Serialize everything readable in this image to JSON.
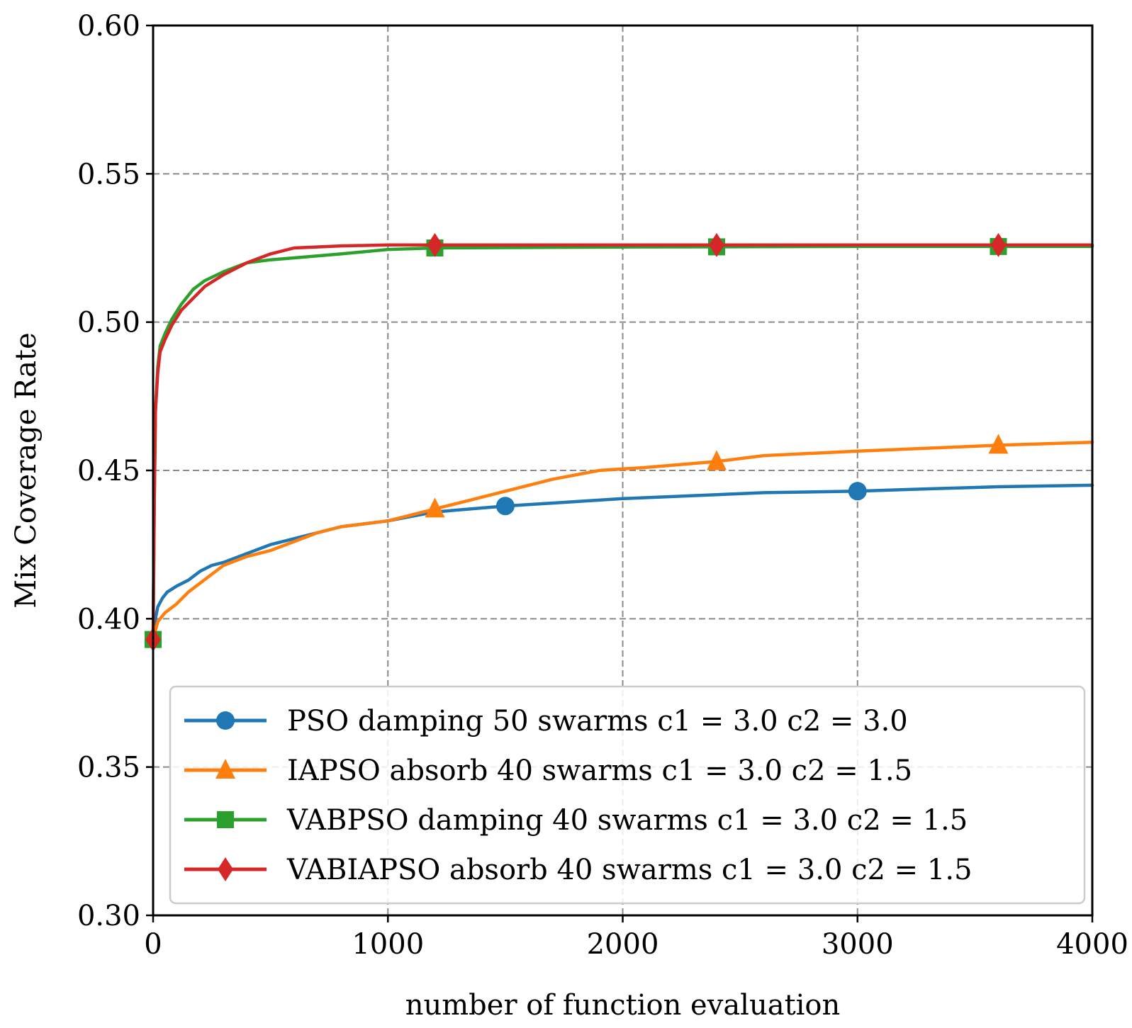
{
  "chart_data": {
    "type": "line",
    "title": "",
    "xlabel": "number of function evaluation",
    "ylabel": "Mix Coverage Rate",
    "xlim": [
      0,
      4000
    ],
    "ylim": [
      0.3,
      0.6
    ],
    "grid": true,
    "legend_position": "lower-right",
    "x_ticks": [
      0,
      1000,
      2000,
      3000,
      4000
    ],
    "x_tick_labels": [
      "0",
      "1000",
      "2000",
      "3000",
      "4000"
    ],
    "y_ticks": [
      0.3,
      0.35,
      0.4,
      0.45,
      0.5,
      0.55,
      0.6
    ],
    "y_tick_labels": [
      "0.30",
      "0.35",
      "0.40",
      "0.45",
      "0.50",
      "0.55",
      "0.60"
    ],
    "series": [
      {
        "name": "PSO damping 50 swarms c1 = 3.0 c2 = 3.0",
        "color": "#1f77b4",
        "marker": "circle",
        "marker_x": [
          1500,
          3000
        ],
        "x": [
          0,
          10,
          20,
          40,
          60,
          100,
          150,
          200,
          250,
          300,
          400,
          500,
          600,
          700,
          800,
          900,
          1000,
          1200,
          1500,
          1700,
          2000,
          2300,
          2600,
          3000,
          3300,
          3600,
          4000
        ],
        "values": [
          0.393,
          0.4,
          0.404,
          0.407,
          0.409,
          0.411,
          0.413,
          0.416,
          0.418,
          0.419,
          0.422,
          0.425,
          0.427,
          0.429,
          0.431,
          0.432,
          0.433,
          0.436,
          0.438,
          0.439,
          0.4405,
          0.4415,
          0.4425,
          0.443,
          0.4438,
          0.4445,
          0.445
        ]
      },
      {
        "name": "IAPSO absorb 40 swarms c1 = 3.0 c2 = 1.5",
        "color": "#ff7f0e",
        "marker": "triangle",
        "marker_x": [
          1200,
          2400,
          3600
        ],
        "x": [
          0,
          20,
          50,
          100,
          150,
          200,
          250,
          300,
          400,
          500,
          600,
          700,
          800,
          900,
          1000,
          1100,
          1200,
          1350,
          1500,
          1700,
          1900,
          2100,
          2400,
          2600,
          3000,
          3300,
          3600,
          4000
        ],
        "values": [
          0.393,
          0.399,
          0.402,
          0.405,
          0.409,
          0.412,
          0.415,
          0.418,
          0.421,
          0.423,
          0.426,
          0.429,
          0.431,
          0.432,
          0.433,
          0.435,
          0.437,
          0.44,
          0.443,
          0.447,
          0.45,
          0.451,
          0.453,
          0.455,
          0.4565,
          0.4575,
          0.4585,
          0.4595
        ]
      },
      {
        "name": "VABPSO damping 40 swarms c1 = 3.0 c2 = 1.5",
        "color": "#2ca02c",
        "marker": "square",
        "marker_x": [
          0,
          1200,
          2400,
          3600
        ],
        "x": [
          0,
          5,
          10,
          20,
          30,
          50,
          80,
          120,
          170,
          220,
          300,
          400,
          500,
          650,
          800,
          1000,
          1200,
          2000,
          3000,
          4000
        ],
        "values": [
          0.393,
          0.44,
          0.47,
          0.485,
          0.492,
          0.496,
          0.501,
          0.506,
          0.511,
          0.514,
          0.517,
          0.52,
          0.521,
          0.522,
          0.523,
          0.5245,
          0.525,
          0.5253,
          0.5255,
          0.5255
        ]
      },
      {
        "name": "VABIAPSO absorb 40 swarms c1 = 3.0 c2 = 1.5",
        "color": "#d62728",
        "marker": "diamond",
        "marker_x": [
          0,
          1200,
          2400,
          3600
        ],
        "x": [
          0,
          5,
          10,
          20,
          30,
          50,
          80,
          120,
          170,
          220,
          300,
          400,
          500,
          600,
          800,
          1000,
          1200,
          2000,
          3000,
          4000
        ],
        "values": [
          0.393,
          0.44,
          0.47,
          0.483,
          0.49,
          0.494,
          0.499,
          0.504,
          0.508,
          0.512,
          0.516,
          0.52,
          0.523,
          0.525,
          0.5257,
          0.526,
          0.526,
          0.526,
          0.526,
          0.526
        ]
      }
    ]
  }
}
